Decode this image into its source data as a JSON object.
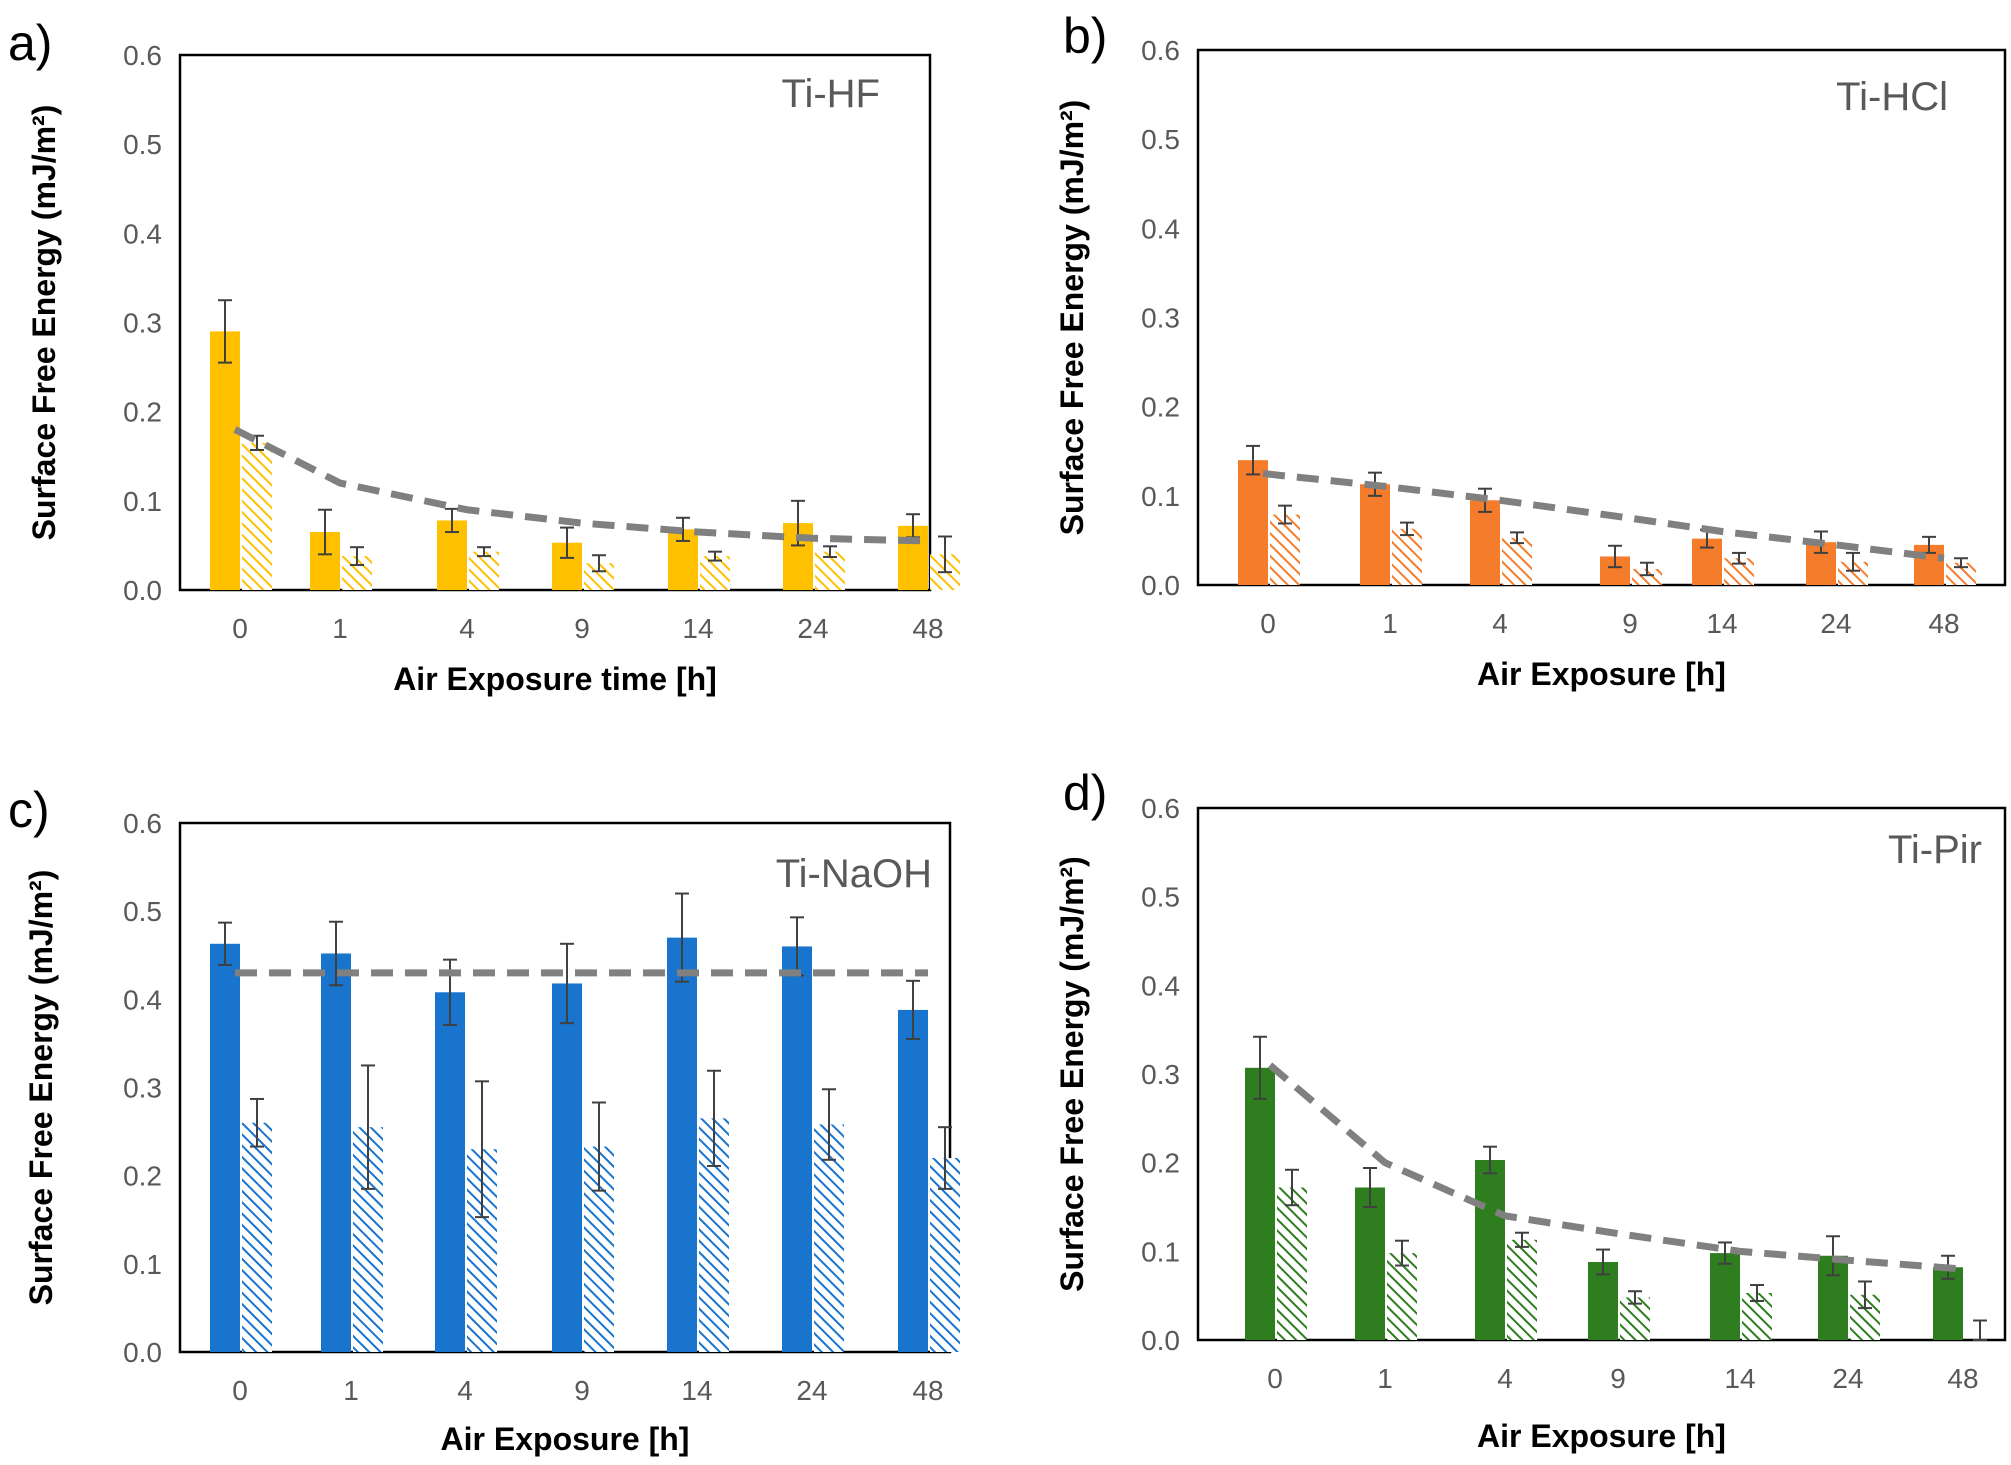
{
  "figure": {
    "description_labels": [
      "a)",
      "b)",
      "c)",
      "d)"
    ]
  },
  "chart_data": [
    {
      "type": "bar",
      "panel_label": "a)",
      "title": "Ti-HF",
      "xlabel": "Air Exposure  time [h]",
      "ylabel": "Surface Free Energy (mJ/m²)",
      "ylim": [
        0,
        0.6
      ],
      "yticks": [
        "0.0",
        "0.1",
        "0.2",
        "0.3",
        "0.4",
        "0.5",
        "0.6"
      ],
      "categories": [
        "0",
        "1",
        "4",
        "9",
        "14",
        "24",
        "48"
      ],
      "color": "#FFC000",
      "series": [
        {
          "name": "solid",
          "pattern": "solid",
          "values": [
            0.29,
            0.065,
            0.078,
            0.053,
            0.068,
            0.075,
            0.072
          ],
          "errors": [
            0.035,
            0.025,
            0.013,
            0.017,
            0.013,
            0.025,
            0.013
          ]
        },
        {
          "name": "hatched",
          "pattern": "hatched",
          "values": [
            0.165,
            0.038,
            0.043,
            0.03,
            0.038,
            0.043,
            0.04
          ],
          "errors": [
            0.008,
            0.01,
            0.005,
            0.009,
            0.005,
            0.006,
            0.02
          ]
        }
      ],
      "trend": [
        0.18,
        0.12,
        0.09,
        0.075,
        0.065,
        0.058,
        0.055
      ]
    },
    {
      "type": "bar",
      "panel_label": "b)",
      "title": "Ti-HCl",
      "xlabel": "Air Exposure  [h]",
      "ylabel": "Surface Free Energy (mJ/m²)",
      "ylim": [
        0,
        0.6
      ],
      "yticks": [
        "0.0",
        "0.1",
        "0.2",
        "0.3",
        "0.4",
        "0.5",
        "0.6"
      ],
      "categories": [
        "0",
        "1",
        "4",
        "9",
        "14",
        "24",
        "48"
      ],
      "color": "#F57C2B",
      "series": [
        {
          "name": "solid",
          "pattern": "solid",
          "values": [
            0.14,
            0.113,
            0.095,
            0.032,
            0.052,
            0.048,
            0.045
          ],
          "errors": [
            0.016,
            0.013,
            0.013,
            0.012,
            0.01,
            0.012,
            0.009
          ]
        },
        {
          "name": "hatched",
          "pattern": "hatched",
          "values": [
            0.079,
            0.063,
            0.053,
            0.018,
            0.03,
            0.026,
            0.025
          ],
          "errors": [
            0.01,
            0.007,
            0.006,
            0.007,
            0.006,
            0.01,
            0.005
          ]
        }
      ],
      "trend": [
        0.125,
        0.11,
        0.095,
        0.075,
        0.06,
        0.045,
        0.03
      ]
    },
    {
      "type": "bar",
      "panel_label": "c)",
      "title": "Ti-NaOH",
      "xlabel": "Air Exposure  [h]",
      "ylabel": "Surface Free Energy (mJ/m²)",
      "ylim": [
        0,
        0.6
      ],
      "yticks": [
        "0.0",
        "0.1",
        "0.2",
        "0.3",
        "0.4",
        "0.5",
        "0.6"
      ],
      "categories": [
        "0",
        "1",
        "4",
        "9",
        "14",
        "24",
        "48"
      ],
      "color": "#1874CD",
      "series": [
        {
          "name": "solid",
          "pattern": "solid",
          "values": [
            0.463,
            0.452,
            0.408,
            0.418,
            0.47,
            0.46,
            0.388
          ],
          "errors": [
            0.024,
            0.036,
            0.037,
            0.045,
            0.05,
            0.033,
            0.033
          ]
        },
        {
          "name": "hatched",
          "pattern": "hatched",
          "values": [
            0.26,
            0.255,
            0.23,
            0.233,
            0.265,
            0.258,
            0.22
          ],
          "errors": [
            0.027,
            0.07,
            0.077,
            0.05,
            0.054,
            0.04,
            0.035
          ]
        }
      ],
      "trend": [
        0.43,
        0.43,
        0.43,
        0.43,
        0.43,
        0.43,
        0.43
      ]
    },
    {
      "type": "bar",
      "panel_label": "d)",
      "title": "Ti-Pir",
      "xlabel": "Air Exposure  [h]",
      "ylabel": "Surface Free Energy (mJ/m²)",
      "ylim": [
        0,
        0.6
      ],
      "yticks": [
        "0.0",
        "0.1",
        "0.2",
        "0.3",
        "0.4",
        "0.5",
        "0.6"
      ],
      "categories": [
        "0",
        "1",
        "4",
        "9",
        "14",
        "24",
        "48"
      ],
      "color": "#2E7D1E",
      "series": [
        {
          "name": "solid",
          "pattern": "solid",
          "values": [
            0.307,
            0.172,
            0.203,
            0.088,
            0.098,
            0.095,
            0.082
          ],
          "errors": [
            0.035,
            0.022,
            0.015,
            0.014,
            0.012,
            0.022,
            0.013
          ]
        },
        {
          "name": "hatched",
          "pattern": "hatched",
          "values": [
            0.172,
            0.098,
            0.113,
            0.048,
            0.053,
            0.051,
            0.0
          ],
          "errors": [
            0.02,
            0.014,
            0.008,
            0.007,
            0.009,
            0.015,
            0.022
          ]
        }
      ],
      "trend": [
        0.31,
        0.2,
        0.14,
        0.12,
        0.1,
        0.09,
        0.08
      ]
    }
  ]
}
